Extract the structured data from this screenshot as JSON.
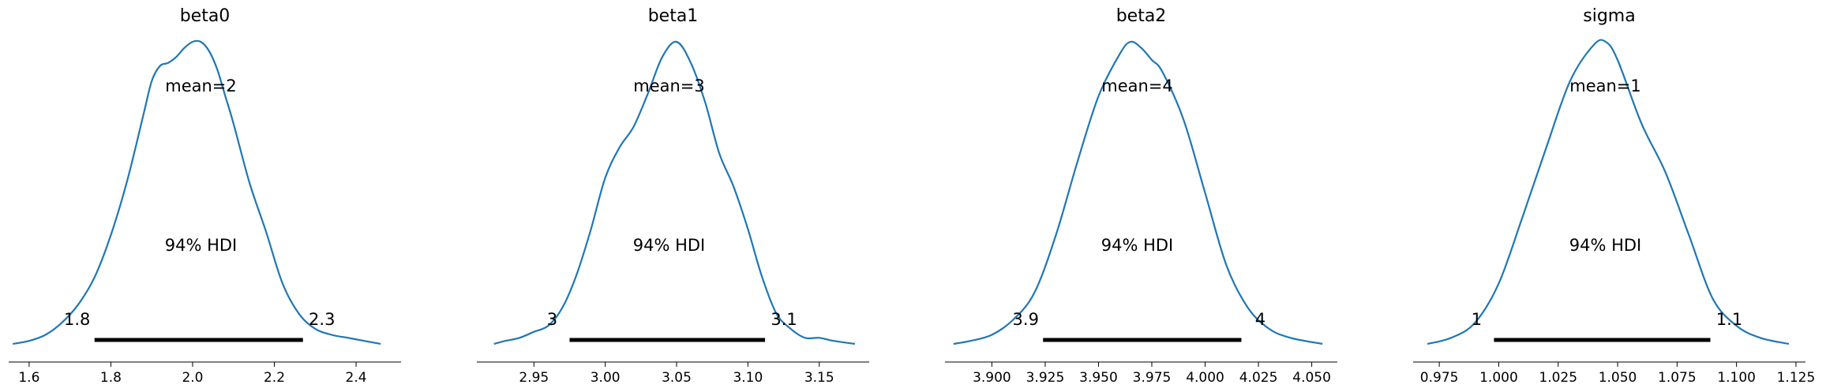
{
  "figure": {
    "line_color": "#1f77b4",
    "hdi_color": "#000000"
  },
  "chart_data": [
    {
      "type": "line",
      "title": "beta0",
      "xlabel": "",
      "ylabel": "",
      "xlim": [
        1.55,
        2.51
      ],
      "xticks": [
        1.6,
        1.8,
        2.0,
        2.2,
        2.4
      ],
      "xtick_labels": [
        "1.6",
        "1.8",
        "2.0",
        "2.2",
        "2.4"
      ],
      "density": {
        "x": [
          1.56,
          1.6,
          1.64,
          1.68,
          1.72,
          1.76,
          1.8,
          1.84,
          1.88,
          1.9,
          1.92,
          1.94,
          1.96,
          1.98,
          2.0,
          2.02,
          2.04,
          2.06,
          2.08,
          2.1,
          2.14,
          2.18,
          2.22,
          2.26,
          2.3,
          2.34,
          2.38,
          2.42,
          2.46
        ],
        "y": [
          0.0,
          0.01,
          0.03,
          0.07,
          0.13,
          0.22,
          0.36,
          0.54,
          0.76,
          0.87,
          0.92,
          0.93,
          0.95,
          0.98,
          1.0,
          1.0,
          0.97,
          0.91,
          0.82,
          0.73,
          0.53,
          0.37,
          0.2,
          0.1,
          0.05,
          0.03,
          0.02,
          0.01,
          0.0
        ]
      },
      "mean_label": "mean=2",
      "hdi": {
        "label": "94% HDI",
        "low": 1.76,
        "high": 2.27,
        "low_label": "1.8",
        "high_label": "2.3"
      }
    },
    {
      "type": "line",
      "title": "beta1",
      "xlabel": "",
      "ylabel": "",
      "xlim": [
        2.91,
        3.185
      ],
      "xticks": [
        2.95,
        3.0,
        3.05,
        3.1,
        3.15
      ],
      "xtick_labels": [
        "2.95",
        "3.00",
        "3.05",
        "3.10",
        "3.15"
      ],
      "density": {
        "x": [
          2.922,
          2.93,
          2.94,
          2.95,
          2.96,
          2.97,
          2.98,
          2.99,
          3.0,
          3.01,
          3.02,
          3.03,
          3.04,
          3.05,
          3.06,
          3.07,
          3.08,
          3.09,
          3.1,
          3.11,
          3.12,
          3.13,
          3.14,
          3.15,
          3.16,
          3.175
        ],
        "y": [
          0.0,
          0.01,
          0.02,
          0.04,
          0.06,
          0.12,
          0.23,
          0.38,
          0.55,
          0.65,
          0.72,
          0.83,
          0.95,
          1.0,
          0.93,
          0.8,
          0.63,
          0.52,
          0.38,
          0.22,
          0.1,
          0.05,
          0.02,
          0.02,
          0.01,
          0.0
        ]
      },
      "mean_label": "mean=3",
      "hdi": {
        "label": "94% HDI",
        "low": 2.975,
        "high": 3.112,
        "low_label": "3",
        "high_label": "3.1"
      }
    },
    {
      "type": "line",
      "title": "beta2",
      "xlabel": "",
      "ylabel": "",
      "xlim": [
        3.878,
        4.062
      ],
      "xticks": [
        3.9,
        3.925,
        3.95,
        3.975,
        4.0,
        4.025,
        4.05
      ],
      "xtick_labels": [
        "3.900",
        "3.925",
        "3.950",
        "3.975",
        "4.000",
        "4.025",
        "4.050"
      ],
      "density": {
        "x": [
          3.882,
          3.89,
          3.9,
          3.91,
          3.92,
          3.93,
          3.94,
          3.95,
          3.96,
          3.965,
          3.97,
          3.975,
          3.98,
          3.99,
          4.0,
          4.01,
          4.02,
          4.03,
          4.04,
          4.055
        ],
        "y": [
          0.0,
          0.01,
          0.03,
          0.08,
          0.17,
          0.36,
          0.6,
          0.82,
          0.96,
          1.0,
          0.98,
          0.94,
          0.9,
          0.74,
          0.5,
          0.26,
          0.12,
          0.05,
          0.02,
          0.0
        ]
      },
      "mean_label": "mean=4",
      "hdi": {
        "label": "94% HDI",
        "low": 3.924,
        "high": 4.017,
        "low_label": "3.9",
        "high_label": "4"
      }
    },
    {
      "type": "line",
      "title": "sigma",
      "xlabel": "",
      "ylabel": "",
      "xlim": [
        0.964,
        1.129
      ],
      "xticks": [
        0.975,
        1.0,
        1.025,
        1.05,
        1.075,
        1.1,
        1.125
      ],
      "xtick_labels": [
        "0.975",
        "1.000",
        "1.025",
        "1.050",
        "1.075",
        "1.100",
        "1.125"
      ],
      "density": {
        "x": [
          0.97,
          0.98,
          0.99,
          1.0,
          1.01,
          1.02,
          1.03,
          1.04,
          1.045,
          1.05,
          1.06,
          1.07,
          1.08,
          1.09,
          1.1,
          1.11,
          1.122
        ],
        "y": [
          0.0,
          0.02,
          0.07,
          0.2,
          0.42,
          0.65,
          0.87,
          0.99,
          1.0,
          0.94,
          0.73,
          0.57,
          0.36,
          0.15,
          0.06,
          0.02,
          0.0
        ]
      },
      "mean_label": "mean=1",
      "hdi": {
        "label": "94% HDI",
        "low": 0.998,
        "high": 1.089,
        "low_label": "1",
        "high_label": "1.1"
      }
    }
  ]
}
